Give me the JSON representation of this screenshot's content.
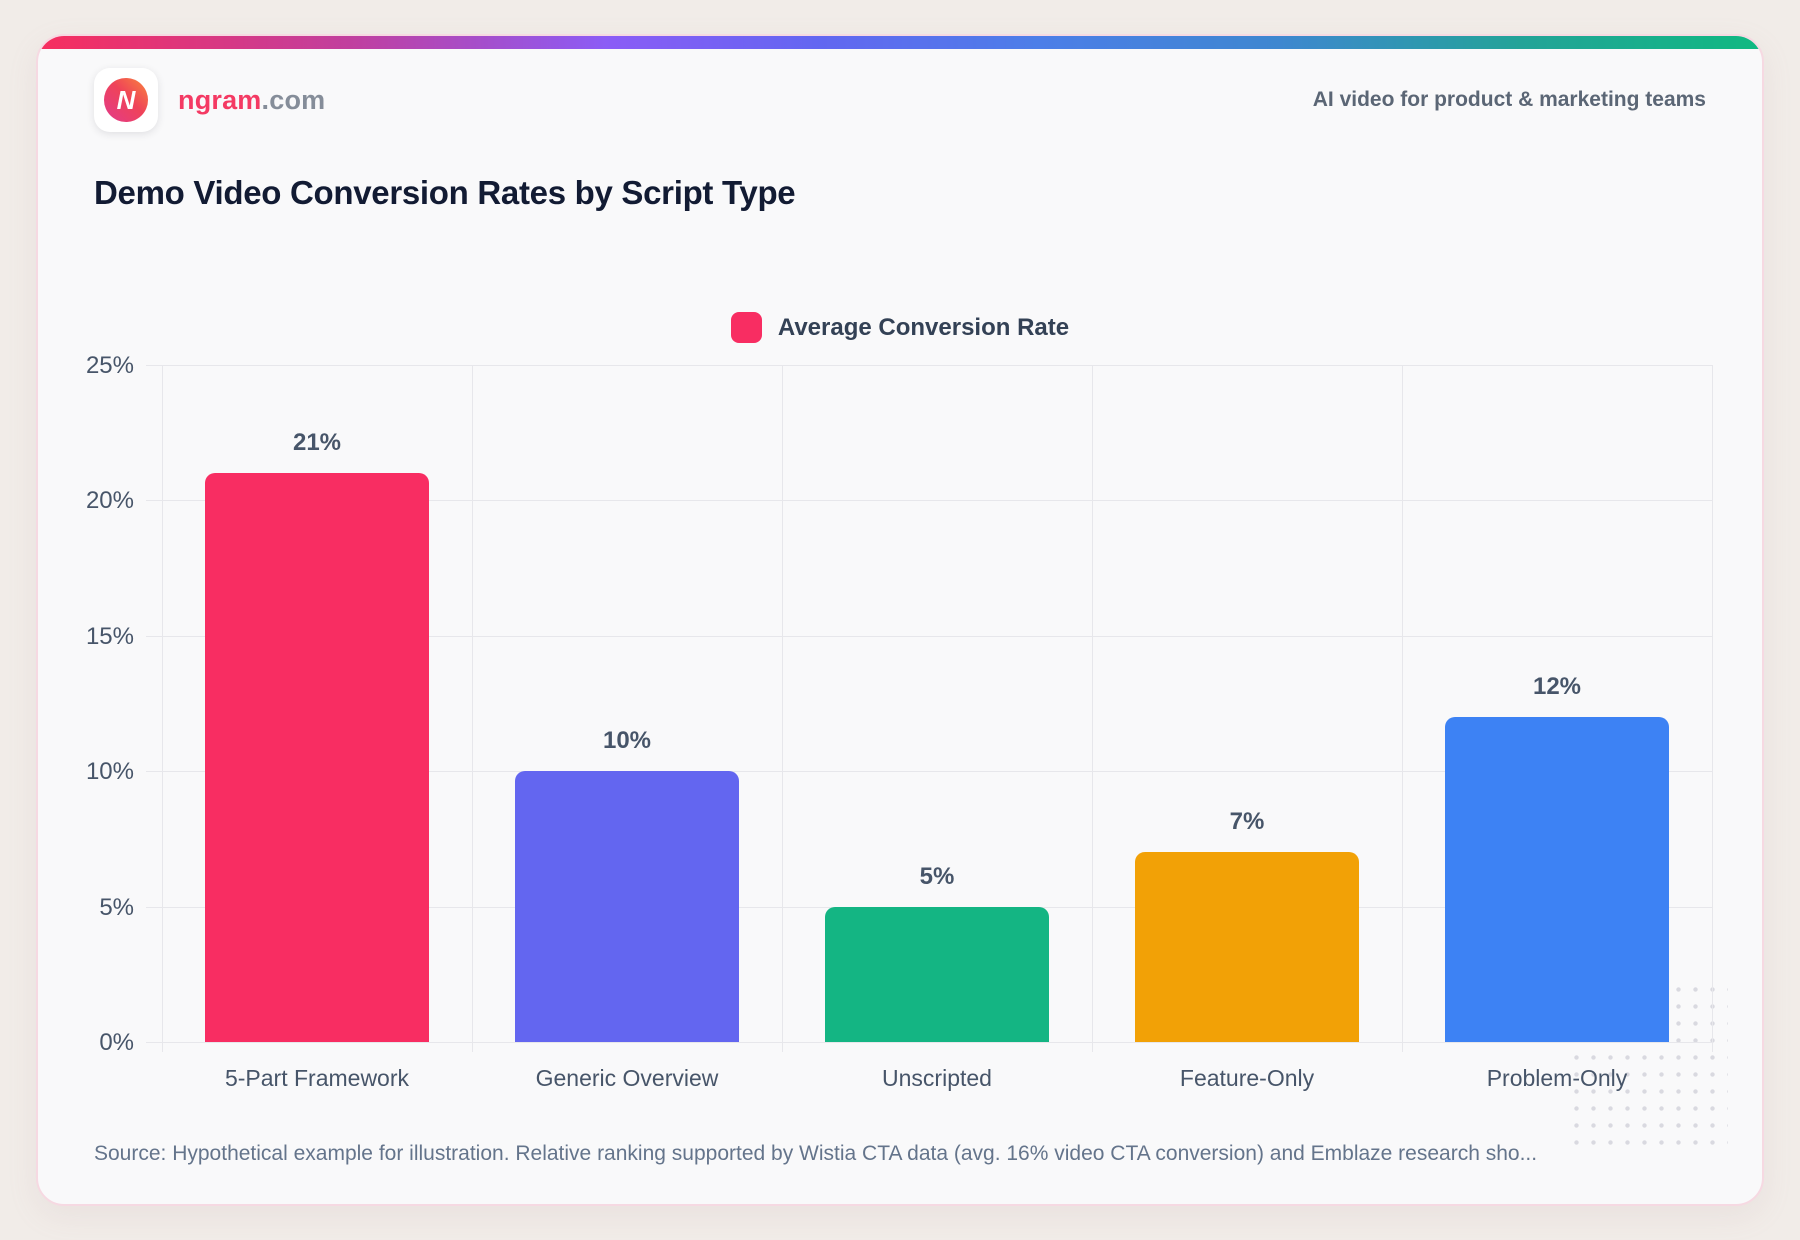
{
  "header": {
    "brand": {
      "name": "ngram",
      "tld": ".com"
    },
    "tagline": "AI video for product & marketing teams"
  },
  "title": "Demo Video Conversion Rates by Script Type",
  "legend": {
    "label": "Average Conversion Rate",
    "swatch_color": "#F82D62"
  },
  "source": "Source: Hypothetical example for illustration. Relative ranking supported by Wistia CTA data (avg. 16% video CTA conversion) and Emblaze research sho...",
  "colors": {
    "page_background": "#F1ECE8",
    "card_background": "#F9F9FA",
    "card_border": "#F6D9E2",
    "grid": "#E7E7EB",
    "axis_text": "#475569",
    "title_text": "#121B33",
    "accent_gradient": [
      "#F72E5E",
      "#8B5CF6",
      "#6366F1",
      "#4C7EE8",
      "#10B981"
    ]
  },
  "chart_data": {
    "type": "bar",
    "title": "Demo Video Conversion Rates by Script Type",
    "categories": [
      "5-Part Framework",
      "Generic Overview",
      "Unscripted",
      "Feature-Only",
      "Problem-Only"
    ],
    "series": [
      {
        "name": "Average Conversion Rate",
        "values": [
          21,
          10,
          5,
          7,
          12
        ]
      }
    ],
    "value_labels": [
      "21%",
      "10%",
      "5%",
      "7%",
      "12%"
    ],
    "bar_colors": [
      "#F82D62",
      "#6366F0",
      "#14B583",
      "#F2A106",
      "#3D82F4"
    ],
    "xlabel": "",
    "ylabel": "",
    "ylim": [
      0,
      25
    ],
    "yticks": [
      0,
      5,
      10,
      15,
      20,
      25
    ],
    "ytick_labels": [
      "0%",
      "5%",
      "10%",
      "15%",
      "20%",
      "25%"
    ],
    "grid": true,
    "legend_position": "top-center"
  }
}
